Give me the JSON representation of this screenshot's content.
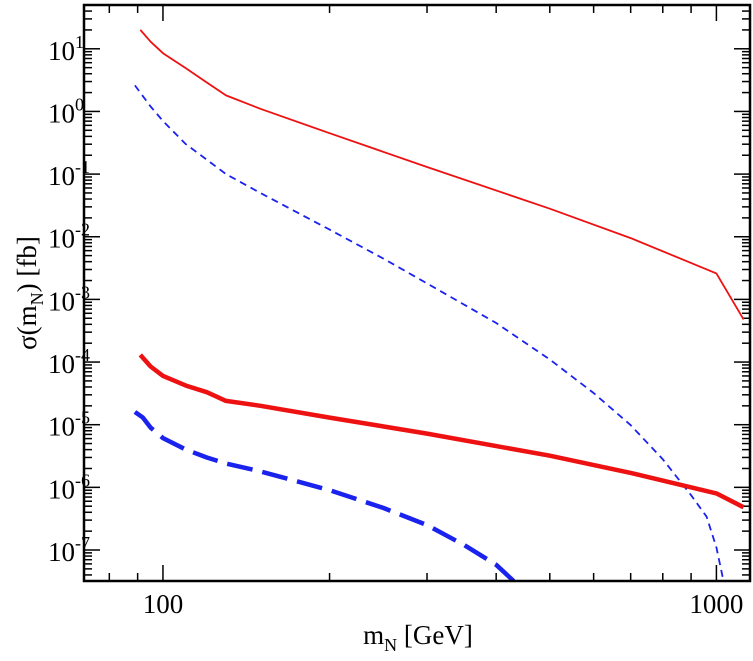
{
  "chart_data": {
    "type": "line",
    "title": "",
    "xlabel": {
      "main": "m",
      "sub": "N",
      "rest": " [GeV]"
    },
    "ylabel": {
      "pre": "σ(m",
      "sub": "N",
      "post": ") [fb]"
    },
    "xscale": "log",
    "yscale": "log",
    "xlim": [
      72,
      1150
    ],
    "ylim": [
      3.2e-08,
      50
    ],
    "grid": false,
    "legend": "none",
    "x_ticks": [
      {
        "value": 100,
        "label": "100"
      },
      {
        "value": 1000,
        "label": "1000"
      }
    ],
    "y_ticks": [
      {
        "value": 10,
        "base": "10",
        "exp": "1"
      },
      {
        "value": 1,
        "base": "10",
        "exp": "0"
      },
      {
        "value": 0.1,
        "base": "10",
        "exp": "-1"
      },
      {
        "value": 0.01,
        "base": "10",
        "exp": "-2"
      },
      {
        "value": 0.001,
        "base": "10",
        "exp": "-3"
      },
      {
        "value": 0.0001,
        "base": "10",
        "exp": "-4"
      },
      {
        "value": 1e-05,
        "base": "10",
        "exp": "-5"
      },
      {
        "value": 1e-06,
        "base": "10",
        "exp": "-6"
      },
      {
        "value": 1e-07,
        "base": "10",
        "exp": "-7"
      }
    ],
    "series": [
      {
        "name": "red-thin-solid",
        "color": "#ee1111",
        "style": "solid",
        "width": "thin",
        "x": [
          91,
          95,
          100,
          110,
          120,
          130,
          150,
          200,
          300,
          500,
          700,
          1000,
          1120
        ],
        "y": [
          20,
          13,
          8.5,
          4.9,
          2.9,
          1.8,
          1.1,
          0.45,
          0.13,
          0.028,
          0.0095,
          0.0026,
          0.00048
        ]
      },
      {
        "name": "blue-thin-dashed",
        "color": "#1a22ee",
        "style": "dashed",
        "width": "thin",
        "x": [
          89,
          95,
          100,
          110,
          120,
          130,
          150,
          200,
          250,
          300,
          400,
          500,
          600,
          700,
          800,
          900,
          960,
          1000,
          1030
        ],
        "y": [
          2.6,
          1.2,
          0.7,
          0.3,
          0.17,
          0.1,
          0.05,
          0.013,
          0.0045,
          0.0018,
          0.00042,
          0.00011,
          3.2e-05,
          9.8e-06,
          2.8e-06,
          7.5e-07,
          3.4e-07,
          1.1e-07,
          3.2e-08
        ]
      },
      {
        "name": "red-thick-solid",
        "color": "#ee1111",
        "style": "solid",
        "width": "thick",
        "x": [
          91,
          95,
          100,
          110,
          120,
          130,
          150,
          200,
          300,
          500,
          700,
          1000,
          1120
        ],
        "y": [
          0.00013,
          8.5e-05,
          6e-05,
          4.2e-05,
          3.3e-05,
          2.4e-05,
          2e-05,
          1.3e-05,
          7.2e-06,
          3.2e-06,
          1.7e-06,
          8e-07,
          4.8e-07
        ]
      },
      {
        "name": "blue-thick-dashed",
        "color": "#1a22ee",
        "style": "dashed",
        "width": "thick",
        "x": [
          89,
          92,
          95,
          100,
          110,
          120,
          130,
          150,
          200,
          250,
          300,
          350,
          400,
          430
        ],
        "y": [
          1.6e-05,
          1.3e-05,
          9e-06,
          6.1e-06,
          4e-06,
          3e-06,
          2.4e-06,
          1.8e-06,
          9e-07,
          4.7e-07,
          2.5e-07,
          1.2e-07,
          5.8e-08,
          3.2e-08
        ]
      }
    ]
  }
}
